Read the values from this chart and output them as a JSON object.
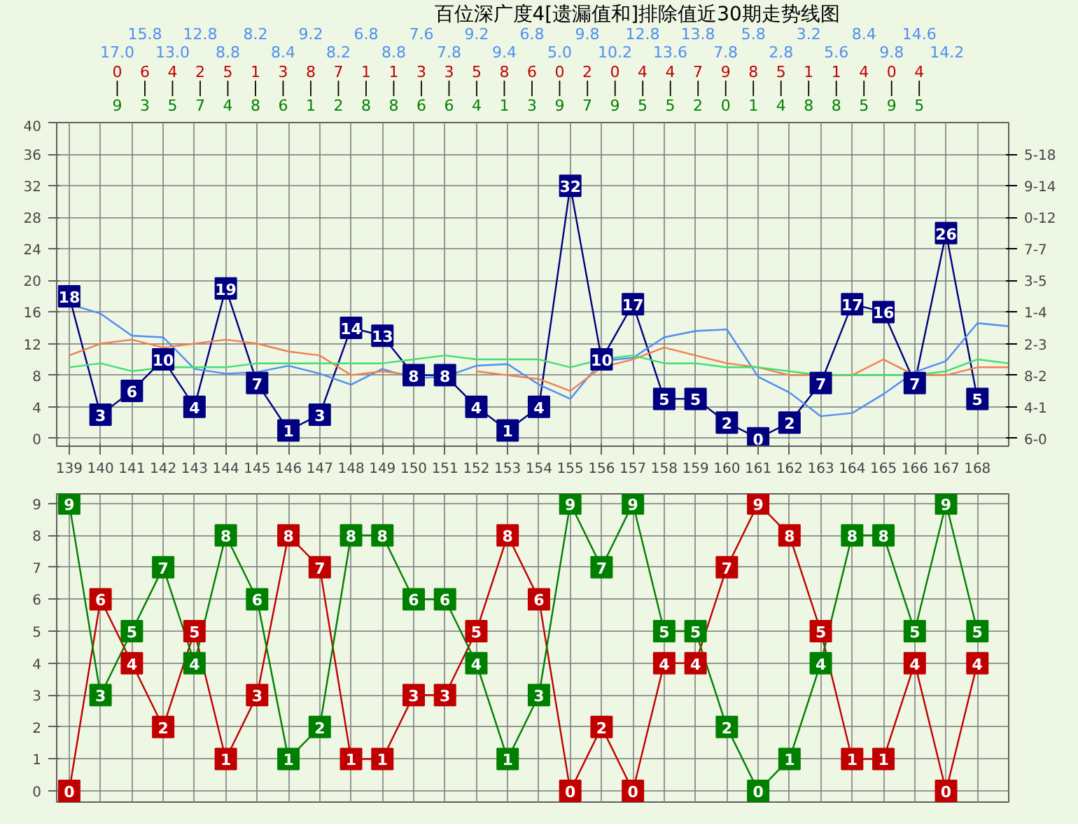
{
  "chart_data": [
    {
      "type": "other",
      "title": "百位深广度4[遗漏值和]排除值近30期走势线图",
      "annotations": [
        "17.0",
        "15.8",
        "13.0",
        "12.8",
        "8.8",
        "8.2",
        "8.4",
        "9.2",
        "8.2",
        "6.8",
        "8.8",
        "7.6",
        "7.8",
        "9.2",
        "9.4",
        "6.8",
        "5.0",
        "9.8",
        "10.2",
        "12.8",
        "13.6",
        "13.8",
        "7.8",
        "5.8",
        "2.8",
        "3.2",
        "5.6",
        "8.4",
        "9.8",
        "14.6",
        "14.2"
      ]
    },
    {
      "type": "other",
      "annotations": [
        "0",
        "6",
        "4",
        "2",
        "5",
        "1",
        "3",
        "8",
        "7",
        "1",
        "1",
        "3",
        "3",
        "5",
        "8",
        "6",
        "0",
        "2",
        "0",
        "4",
        "4",
        "7",
        "9",
        "8",
        "5",
        "1",
        "1",
        "4",
        "0",
        "4"
      ]
    },
    {
      "type": "other",
      "annotations": [
        "|",
        "|",
        "|",
        "|",
        "|",
        "|",
        "|",
        "|",
        "|",
        "|",
        "|",
        "|",
        "|",
        "|",
        "|",
        "|",
        "|",
        "|",
        "|",
        "|",
        "|",
        "|",
        "|",
        "|",
        "|",
        "|",
        "|",
        "|",
        "|",
        "|"
      ]
    },
    {
      "type": "other",
      "annotations": [
        "9",
        "3",
        "5",
        "7",
        "4",
        "8",
        "6",
        "1",
        "2",
        "8",
        "8",
        "6",
        "6",
        "4",
        "1",
        "3",
        "9",
        "7",
        "9",
        "5",
        "5",
        "2",
        "0",
        "1",
        "4",
        "8",
        "8",
        "5",
        "9",
        "5"
      ]
    },
    {
      "type": "line",
      "xlim": [
        138.6,
        169
      ],
      "xticks": [
        139,
        140,
        141,
        142,
        143,
        144,
        145,
        146,
        147,
        148,
        149,
        150,
        151,
        152,
        153,
        154,
        155,
        156,
        157,
        158,
        159,
        160,
        161,
        162,
        163,
        164,
        165,
        166,
        167,
        168
      ],
      "ylim": [
        -1,
        40
      ],
      "yticks": [
        0,
        4,
        8,
        12,
        16,
        20,
        24,
        28,
        32,
        36,
        40
      ],
      "y2_categories": [
        "5-18",
        "9-14",
        "0-12",
        "7-7",
        "3-5",
        "1-4",
        "2-3",
        "8-2",
        "4-1",
        "6-0"
      ],
      "grid": true,
      "line_style": "solid",
      "series": [
        {
          "color": "#000080",
          "marker": "square",
          "x": [
            139,
            140,
            141,
            142,
            143,
            144,
            145,
            146,
            147,
            148,
            149,
            150,
            151,
            152,
            153,
            154,
            155,
            156,
            157,
            158,
            159,
            160,
            161,
            162,
            163,
            164,
            165,
            166,
            167,
            168
          ],
          "values": [
            18,
            3,
            6,
            10,
            4,
            19,
            7,
            1,
            3,
            14,
            13,
            8,
            8,
            4,
            1,
            4,
            32,
            10,
            17,
            5,
            5,
            2,
            0,
            2,
            7,
            17,
            16,
            7,
            26,
            5
          ],
          "value_labels": [
            "18",
            "3",
            "6",
            "10",
            "4",
            "19",
            "7",
            "1",
            "3",
            "14",
            "13",
            "8",
            "8",
            "4",
            "1",
            "4",
            "32",
            "10",
            "17",
            "5",
            "5",
            "2",
            "0",
            "2",
            "7",
            "17",
            "16",
            "7",
            "26",
            "5"
          ]
        },
        {
          "color": "#4f8ff0",
          "x": [
            139,
            140,
            141,
            142,
            143,
            144,
            145,
            146,
            147,
            148,
            149,
            150,
            151,
            152,
            153,
            154,
            155,
            156,
            157,
            158,
            159,
            160,
            161,
            162,
            163,
            164,
            165,
            166,
            167,
            168,
            169
          ],
          "values": [
            17,
            15.8,
            13,
            12.8,
            8.8,
            8.2,
            8.4,
            9.2,
            8.2,
            6.8,
            8.8,
            7.6,
            7.8,
            9.2,
            9.4,
            6.8,
            5,
            9.8,
            10.2,
            12.8,
            13.6,
            13.8,
            7.8,
            5.8,
            2.8,
            3.2,
            5.6,
            8.4,
            9.8,
            14.6,
            14.2
          ]
        },
        {
          "color": "#f08050",
          "x": [
            139,
            140,
            141,
            142,
            143,
            144,
            145,
            146,
            147,
            148,
            149,
            150,
            151,
            152,
            153,
            154,
            155,
            156,
            157,
            158,
            159,
            160,
            161,
            162,
            163,
            164,
            165,
            166,
            167,
            168,
            169
          ],
          "values": [
            10.5,
            12,
            12.5,
            11.5,
            12,
            12.5,
            12,
            11,
            10.5,
            8,
            8.5,
            8,
            null,
            8.5,
            8,
            7.5,
            6,
            9,
            10,
            11.5,
            10.5,
            9.5,
            9,
            8,
            8,
            8,
            10,
            8,
            8,
            9,
            9
          ]
        },
        {
          "color": "#40e070",
          "x": [
            139,
            140,
            141,
            142,
            143,
            144,
            145,
            146,
            147,
            148,
            149,
            150,
            151,
            152,
            153,
            154,
            155,
            156,
            157,
            158,
            159,
            160,
            161,
            162,
            163,
            164,
            165,
            166,
            167,
            168,
            169
          ],
          "values": [
            9,
            9.5,
            8.5,
            9,
            9,
            9,
            9.5,
            9.5,
            9.5,
            9.5,
            9.5,
            10,
            10.5,
            10,
            10,
            10,
            9,
            10,
            10.5,
            9.5,
            9.5,
            9,
            9,
            8.5,
            8,
            8,
            8,
            8,
            8.5,
            10,
            9.5
          ]
        }
      ]
    },
    {
      "type": "line",
      "x": [
        139,
        140,
        141,
        142,
        143,
        144,
        145,
        146,
        147,
        148,
        149,
        150,
        151,
        152,
        153,
        154,
        155,
        156,
        157,
        158,
        159,
        160,
        161,
        162,
        163,
        164,
        165,
        166,
        167,
        168
      ],
      "xlim": [
        138.6,
        169
      ],
      "xticks": [
        139,
        140,
        141,
        142,
        143,
        144,
        145,
        146,
        147,
        148,
        149,
        150,
        151,
        152,
        153,
        154,
        155,
        156,
        157,
        158,
        159,
        160,
        161,
        162,
        163,
        164,
        165,
        166,
        167,
        168
      ],
      "ylim": [
        -0.35,
        9.3
      ],
      "yticks": [
        0,
        1,
        2,
        3,
        4,
        5,
        6,
        7,
        8,
        9
      ],
      "tick_labels": "y",
      "grid": true,
      "line_style": "solid",
      "marker": "square",
      "data_labels": true,
      "series": [
        {
          "color": "#c00000",
          "values": [
            0,
            6,
            4,
            2,
            5,
            1,
            3,
            8,
            7,
            1,
            1,
            3,
            3,
            5,
            8,
            6,
            0,
            2,
            0,
            4,
            4,
            7,
            9,
            8,
            5,
            1,
            1,
            4,
            0,
            4
          ]
        },
        {
          "color": "#008000",
          "values": [
            9,
            3,
            5,
            7,
            4,
            8,
            6,
            1,
            2,
            8,
            8,
            6,
            6,
            4,
            1,
            3,
            9,
            7,
            9,
            5,
            5,
            2,
            0,
            1,
            4,
            8,
            8,
            5,
            9,
            5
          ]
        }
      ]
    }
  ]
}
